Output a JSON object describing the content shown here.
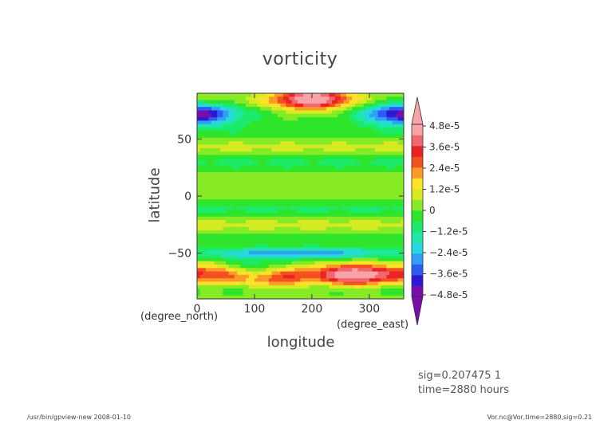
{
  "chart_data": {
    "type": "heatmap",
    "title": "vorticity",
    "xlabel": "longitude",
    "ylabel": "latitude",
    "x_unit": "(degree_east)",
    "y_unit": "(degree_north)",
    "xlim": [
      0,
      360
    ],
    "ylim": [
      -90,
      90
    ],
    "x_ticks": [
      0,
      100,
      200,
      300
    ],
    "y_ticks": [
      -50,
      0,
      50
    ],
    "x_tick_labels": [
      "0",
      "100",
      "200",
      "300"
    ],
    "y_tick_labels": [
      "−50",
      "0",
      "50"
    ],
    "colorbar": {
      "min": -4.8e-05,
      "max": 4.8e-05,
      "step": 1.2e-05,
      "labels": [
        "4.8e-5",
        "3.6e-5",
        "2.4e-5",
        "1.2e-5",
        "0",
        "−1.2e-5",
        "−2.4e-5",
        "−3.6e-5",
        "−4.8e-5"
      ],
      "colors": [
        "#7a0dab",
        "#2a1ad6",
        "#2d5cf2",
        "#2fa0f5",
        "#26d9de",
        "#21e6a9",
        "#1cea6a",
        "#2ee52c",
        "#86ea25",
        "#d6ea22",
        "#fde12a",
        "#fc9a28",
        "#f5501f",
        "#ea2424",
        "#f0676f",
        "#f7a3a8"
      ]
    },
    "field_features": [
      {
        "feature": "positive maximum",
        "lon": 200,
        "lat": 85,
        "value": 4.5e-05
      },
      {
        "feature": "negative band",
        "lon": 20,
        "lat": 72,
        "value": -2.4e-05
      },
      {
        "feature": "negative band",
        "lon": 340,
        "lat": 72,
        "value": -2.4e-05
      },
      {
        "feature": "negative jet band",
        "lon": 180,
        "lat": -50,
        "value": -2.8e-05
      },
      {
        "feature": "positive maximum",
        "lon": 275,
        "lat": -70,
        "value": 4.8e-05
      },
      {
        "feature": "positive band",
        "lon": 140,
        "lat": -72,
        "value": 3.6e-05
      },
      {
        "feature": "positive band",
        "lon": 40,
        "lat": -70,
        "value": 3e-05
      },
      {
        "feature": "negative spot",
        "lon": 100,
        "lat": -66,
        "value": -2.6e-05
      }
    ]
  },
  "annotations": {
    "sig_line": "sig=0.207475 1",
    "time_line": "time=2880 hours"
  },
  "footer": {
    "left": "/usr/bin/gpview-new  2008-01-10",
    "right": "Vor.nc@Vor,time=2880,sig=0.21"
  }
}
